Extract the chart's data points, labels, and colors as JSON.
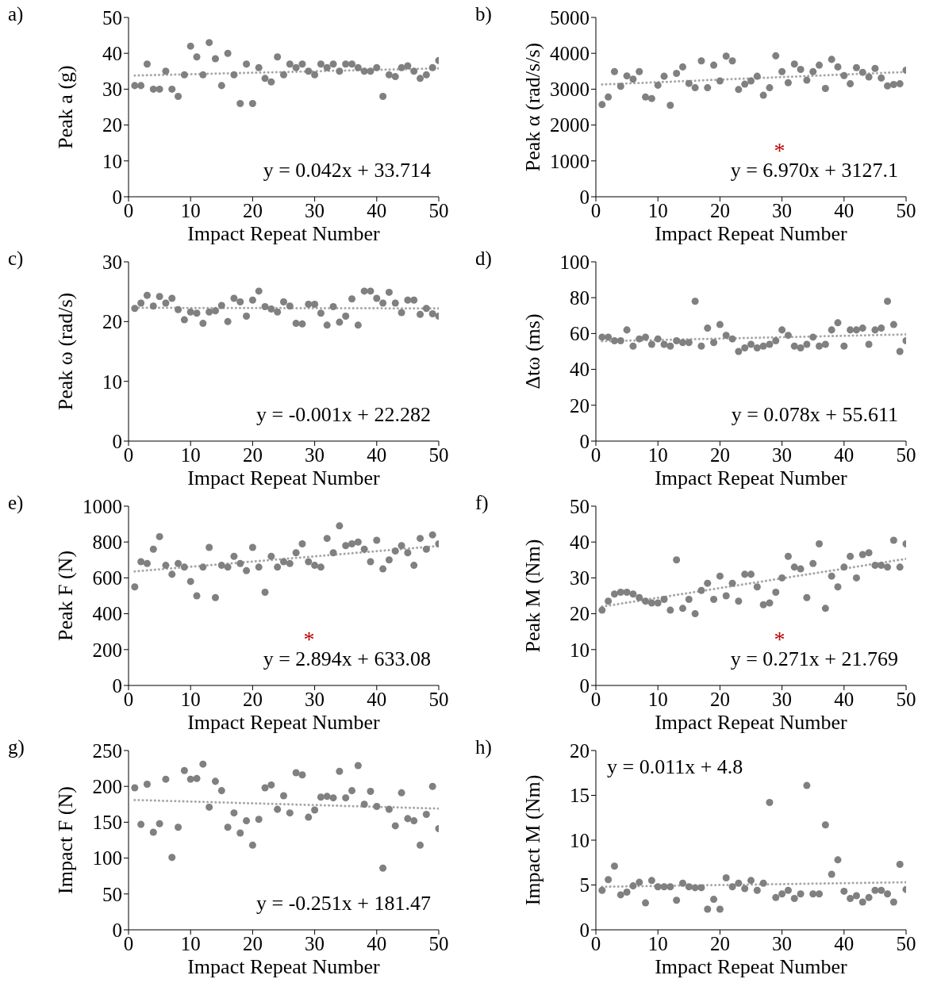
{
  "chart_data": [
    {
      "type": "scatter",
      "title": "a)",
      "xlabel": "Impact Repeat Number",
      "ylabel": "Peak a (g)",
      "xlim": [
        0,
        50
      ],
      "xticks": [
        0,
        10,
        20,
        30,
        40,
        50
      ],
      "ylim": [
        0,
        50
      ],
      "yticks": [
        0,
        10,
        20,
        30,
        40,
        50
      ],
      "marker": "circle",
      "annotations": [
        "y = 0.042x + 33.714"
      ],
      "series": [
        {
          "type": "scatter",
          "color": "#808080",
          "x": [
            1,
            2,
            3,
            4,
            5,
            6,
            7,
            8,
            9,
            10,
            11,
            12,
            13,
            14,
            15,
            16,
            17,
            18,
            19,
            20,
            21,
            22,
            23,
            24,
            25,
            26,
            27,
            28,
            29,
            30,
            31,
            32,
            33,
            34,
            35,
            36,
            37,
            38,
            39,
            40,
            41,
            42,
            43,
            44,
            45,
            46,
            47,
            48,
            49,
            50
          ],
          "values": [
            31,
            31,
            37,
            30,
            30,
            35,
            30,
            28,
            34,
            42,
            39,
            34,
            43,
            38.5,
            31,
            40,
            34,
            26,
            37,
            26,
            36,
            33,
            32,
            39,
            34,
            37,
            36,
            37,
            35,
            34,
            37,
            36,
            37,
            35,
            37,
            37,
            36,
            35,
            35,
            36,
            28,
            34,
            33.5,
            36,
            36.5,
            35,
            33,
            34,
            36,
            38
          ]
        },
        {
          "type": "line",
          "color": "#a6a6a6",
          "line_style": "dotted",
          "x": [
            1,
            50
          ],
          "values": [
            33.8,
            35.8
          ],
          "marker": "none"
        }
      ]
    },
    {
      "type": "scatter",
      "title": "b)",
      "xlabel": "Impact Repeat Number",
      "ylabel": "Peak α (rad/s/s)",
      "xlim": [
        0,
        50
      ],
      "xticks": [
        0,
        10,
        20,
        30,
        40,
        50
      ],
      "ylim": [
        0,
        5000
      ],
      "yticks": [
        0,
        1000,
        2000,
        3000,
        4000,
        5000
      ],
      "marker": "circle",
      "annotations": [
        "y = 6.970x + 3127.1",
        "*"
      ],
      "series": [
        {
          "type": "scatter",
          "color": "#808080",
          "x": [
            1,
            2,
            3,
            4,
            5,
            6,
            7,
            8,
            9,
            10,
            11,
            12,
            13,
            14,
            15,
            16,
            17,
            18,
            19,
            20,
            21,
            22,
            23,
            24,
            25,
            26,
            27,
            28,
            29,
            30,
            31,
            32,
            33,
            34,
            35,
            36,
            37,
            38,
            39,
            40,
            41,
            42,
            43,
            44,
            45,
            46,
            47,
            48,
            49,
            50
          ],
          "values": [
            2570,
            2780,
            3490,
            3080,
            3370,
            3280,
            3490,
            2780,
            2740,
            3110,
            3360,
            2550,
            3440,
            3620,
            3160,
            3040,
            3790,
            3040,
            3670,
            3230,
            3920,
            3790,
            2990,
            3140,
            3230,
            3360,
            2830,
            3040,
            3930,
            3490,
            3180,
            3700,
            3550,
            3250,
            3490,
            3670,
            3020,
            3830,
            3620,
            3380,
            3150,
            3600,
            3470,
            3340,
            3580,
            3310,
            3090,
            3130,
            3150,
            3530
          ]
        },
        {
          "type": "line",
          "color": "#a6a6a6",
          "line_style": "dotted",
          "x": [
            1,
            50
          ],
          "values": [
            3130,
            3480
          ],
          "marker": "none"
        }
      ]
    },
    {
      "type": "scatter",
      "title": "c)",
      "xlabel": "Impact Repeat Number",
      "ylabel": "Peak ω (rad/s)",
      "xlim": [
        0,
        50
      ],
      "xticks": [
        0,
        10,
        20,
        30,
        40,
        50
      ],
      "ylim": [
        0,
        30
      ],
      "yticks": [
        0,
        10,
        20,
        30
      ],
      "marker": "circle",
      "annotations": [
        "y = -0.001x + 22.282"
      ],
      "series": [
        {
          "type": "scatter",
          "color": "#808080",
          "x": [
            1,
            2,
            3,
            4,
            5,
            6,
            7,
            8,
            9,
            10,
            11,
            12,
            13,
            14,
            15,
            16,
            17,
            18,
            19,
            20,
            21,
            22,
            23,
            24,
            25,
            26,
            27,
            28,
            29,
            30,
            31,
            32,
            33,
            34,
            35,
            36,
            37,
            38,
            39,
            40,
            41,
            42,
            43,
            44,
            45,
            46,
            47,
            48,
            49,
            50
          ],
          "values": [
            22.2,
            23.1,
            24.4,
            22.6,
            24.2,
            23.1,
            23.9,
            22,
            20.3,
            21.6,
            21.4,
            19.7,
            21.6,
            21.8,
            22.7,
            20,
            23.9,
            23.3,
            20.9,
            23.6,
            25.1,
            22.5,
            22.1,
            21.6,
            23.3,
            22.6,
            19.7,
            19.6,
            22.9,
            22.9,
            21.4,
            19.4,
            22.5,
            19.9,
            20.9,
            23.8,
            19.4,
            25.1,
            25.1,
            23.9,
            23.1,
            24.9,
            23.1,
            21.5,
            23.6,
            23.6,
            21.2,
            22.2,
            21.3,
            20.9
          ]
        },
        {
          "type": "line",
          "color": "#a6a6a6",
          "line_style": "dotted",
          "x": [
            1,
            50
          ],
          "values": [
            22.3,
            22.2
          ],
          "marker": "none"
        }
      ]
    },
    {
      "type": "scatter",
      "title": "d)",
      "xlabel": "Impact Repeat Number",
      "ylabel": "Δtω (ms)",
      "xlim": [
        0,
        50
      ],
      "xticks": [
        0,
        10,
        20,
        30,
        40,
        50
      ],
      "ylim": [
        0,
        100
      ],
      "yticks": [
        0,
        20,
        40,
        60,
        80,
        100
      ],
      "marker": "circle",
      "annotations": [
        "y = 0.078x + 55.611"
      ],
      "series": [
        {
          "type": "scatter",
          "color": "#808080",
          "x": [
            1,
            2,
            3,
            4,
            5,
            6,
            7,
            8,
            9,
            10,
            11,
            12,
            13,
            14,
            15,
            16,
            17,
            18,
            19,
            20,
            21,
            22,
            23,
            24,
            25,
            26,
            27,
            28,
            29,
            30,
            31,
            32,
            33,
            34,
            35,
            36,
            37,
            38,
            39,
            40,
            41,
            42,
            43,
            44,
            45,
            46,
            47,
            48,
            49,
            50
          ],
          "values": [
            58,
            58,
            56,
            56,
            62,
            53,
            57,
            58,
            54,
            57,
            54,
            53,
            56,
            55,
            55,
            78,
            53,
            63,
            55,
            65,
            59,
            57,
            50,
            52,
            54,
            52,
            53,
            54,
            56,
            62,
            59,
            53,
            52,
            54,
            58,
            53,
            54,
            62,
            66,
            53,
            62,
            62,
            63,
            54,
            62,
            63,
            78,
            65,
            50,
            56
          ]
        },
        {
          "type": "line",
          "color": "#a6a6a6",
          "line_style": "dotted",
          "x": [
            1,
            50
          ],
          "values": [
            55.7,
            59.5
          ],
          "marker": "none"
        }
      ]
    },
    {
      "type": "scatter",
      "title": "e)",
      "xlabel": "Impact Repeat Number",
      "ylabel": "Peak F (N)",
      "xlim": [
        0,
        50
      ],
      "xticks": [
        0,
        10,
        20,
        30,
        40,
        50
      ],
      "ylim": [
        0,
        1000
      ],
      "yticks": [
        0,
        200,
        400,
        600,
        800,
        1000
      ],
      "marker": "circle",
      "annotations": [
        "y = 2.894x + 633.08",
        "*"
      ],
      "series": [
        {
          "type": "scatter",
          "color": "#808080",
          "x": [
            1,
            2,
            3,
            4,
            5,
            6,
            7,
            8,
            9,
            10,
            11,
            12,
            13,
            14,
            15,
            16,
            17,
            18,
            19,
            20,
            21,
            22,
            23,
            24,
            25,
            26,
            27,
            28,
            29,
            30,
            31,
            32,
            33,
            34,
            35,
            36,
            37,
            38,
            39,
            40,
            41,
            42,
            43,
            44,
            45,
            46,
            47,
            48,
            49,
            50
          ],
          "values": [
            550,
            690,
            680,
            760,
            830,
            670,
            620,
            680,
            660,
            580,
            500,
            660,
            770,
            490,
            670,
            660,
            720,
            680,
            640,
            770,
            660,
            520,
            720,
            660,
            690,
            680,
            740,
            790,
            690,
            670,
            660,
            820,
            740,
            890,
            780,
            790,
            800,
            760,
            690,
            810,
            650,
            700,
            750,
            780,
            740,
            670,
            820,
            760,
            840,
            790
          ]
        },
        {
          "type": "line",
          "color": "#a6a6a6",
          "line_style": "dotted",
          "x": [
            1,
            50
          ],
          "values": [
            636,
            778
          ],
          "marker": "none"
        }
      ]
    },
    {
      "type": "scatter",
      "title": "f)",
      "xlabel": "Impact Repeat Number",
      "ylabel": "Peak M (Nm)",
      "xlim": [
        0,
        50
      ],
      "xticks": [
        0,
        10,
        20,
        30,
        40,
        50
      ],
      "ylim": [
        0,
        50
      ],
      "yticks": [
        0,
        10,
        20,
        30,
        40,
        50
      ],
      "marker": "circle",
      "annotations": [
        "y = 0.271x + 21.769",
        "*"
      ],
      "series": [
        {
          "type": "scatter",
          "color": "#808080",
          "x": [
            1,
            2,
            3,
            4,
            5,
            6,
            7,
            8,
            9,
            10,
            11,
            12,
            13,
            14,
            15,
            16,
            17,
            18,
            19,
            20,
            21,
            22,
            23,
            24,
            25,
            26,
            27,
            28,
            29,
            30,
            31,
            32,
            33,
            34,
            35,
            36,
            37,
            38,
            39,
            40,
            41,
            42,
            43,
            44,
            45,
            46,
            47,
            48,
            49,
            50
          ],
          "values": [
            21,
            23.5,
            25.5,
            26,
            26,
            25.5,
            24.5,
            23.5,
            23,
            23,
            24,
            21,
            35,
            21.5,
            24,
            20,
            26.5,
            28.5,
            24,
            30.5,
            25,
            28.5,
            23.5,
            31,
            31,
            27.5,
            22.5,
            23,
            26,
            30,
            36,
            33,
            32.5,
            24.5,
            34,
            39.5,
            21.5,
            30.5,
            27.5,
            33,
            36,
            30,
            36.5,
            37,
            33.5,
            33.5,
            33,
            40.5,
            33,
            39.5
          ]
        },
        {
          "type": "line",
          "color": "#a6a6a6",
          "line_style": "dotted",
          "x": [
            1,
            50
          ],
          "values": [
            22,
            35.3
          ],
          "marker": "none"
        }
      ]
    },
    {
      "type": "scatter",
      "title": "g)",
      "xlabel": "Impact Repeat Number",
      "ylabel": "Impact F (N)",
      "xlim": [
        0,
        50
      ],
      "xticks": [
        0,
        10,
        20,
        30,
        40,
        50
      ],
      "ylim": [
        0,
        250
      ],
      "yticks": [
        0,
        50,
        100,
        150,
        200,
        250
      ],
      "marker": "circle",
      "annotations": [
        "y = -0.251x + 181.47"
      ],
      "series": [
        {
          "type": "scatter",
          "color": "#808080",
          "x": [
            1,
            2,
            3,
            4,
            5,
            6,
            7,
            8,
            9,
            10,
            11,
            12,
            13,
            14,
            15,
            16,
            17,
            18,
            19,
            20,
            21,
            22,
            23,
            24,
            25,
            26,
            27,
            28,
            29,
            30,
            31,
            32,
            33,
            34,
            35,
            36,
            37,
            38,
            39,
            40,
            41,
            42,
            43,
            44,
            45,
            46,
            47,
            48,
            49,
            50
          ],
          "values": [
            198,
            147,
            203,
            136,
            148,
            210,
            101,
            143,
            222,
            210,
            211,
            231,
            171,
            207,
            194,
            143,
            163,
            135,
            152,
            118,
            154,
            198,
            202,
            168,
            187,
            163,
            219,
            216,
            157,
            167,
            185,
            186,
            184,
            221,
            184,
            194,
            229,
            175,
            193,
            172,
            86,
            168,
            145,
            191,
            155,
            152,
            118,
            161,
            200,
            141
          ]
        },
        {
          "type": "line",
          "color": "#a6a6a6",
          "line_style": "dotted",
          "x": [
            1,
            50
          ],
          "values": [
            181,
            169
          ],
          "marker": "none"
        }
      ]
    },
    {
      "type": "scatter",
      "title": "h)",
      "xlabel": "Impact Repeat Number",
      "ylabel": "Impact M (Nm)",
      "xlim": [
        0,
        50
      ],
      "xticks": [
        0,
        10,
        20,
        30,
        40,
        50
      ],
      "ylim": [
        0,
        20
      ],
      "yticks": [
        0,
        5,
        10,
        15,
        20
      ],
      "marker": "circle",
      "annotations": [
        "y = 0.011x + 4.8"
      ],
      "series": [
        {
          "type": "scatter",
          "color": "#808080",
          "x": [
            1,
            2,
            3,
            4,
            5,
            6,
            7,
            8,
            9,
            10,
            11,
            12,
            13,
            14,
            15,
            16,
            17,
            18,
            19,
            20,
            21,
            22,
            23,
            24,
            25,
            26,
            27,
            28,
            29,
            30,
            31,
            32,
            33,
            34,
            35,
            36,
            37,
            38,
            39,
            40,
            41,
            42,
            43,
            44,
            45,
            46,
            47,
            48,
            49,
            50
          ],
          "values": [
            4.4,
            5.6,
            7.1,
            3.9,
            4.2,
            4.9,
            5.3,
            3,
            5.5,
            4.8,
            4.8,
            4.8,
            3.3,
            5.2,
            4.8,
            4.7,
            4.7,
            2.3,
            3.4,
            2.3,
            5.8,
            4.8,
            5.2,
            4.6,
            5.5,
            4.4,
            5.2,
            14.2,
            3.6,
            4,
            4.4,
            3.5,
            4,
            16.1,
            4,
            4,
            11.7,
            6.2,
            7.8,
            4.3,
            3.5,
            3.8,
            3.1,
            3.6,
            4.4,
            4.4,
            4,
            3.1,
            7.3,
            4.5
          ]
        },
        {
          "type": "line",
          "color": "#a6a6a6",
          "line_style": "dotted",
          "x": [
            1,
            50
          ],
          "values": [
            4.8,
            5.3
          ],
          "marker": "none"
        }
      ]
    }
  ]
}
